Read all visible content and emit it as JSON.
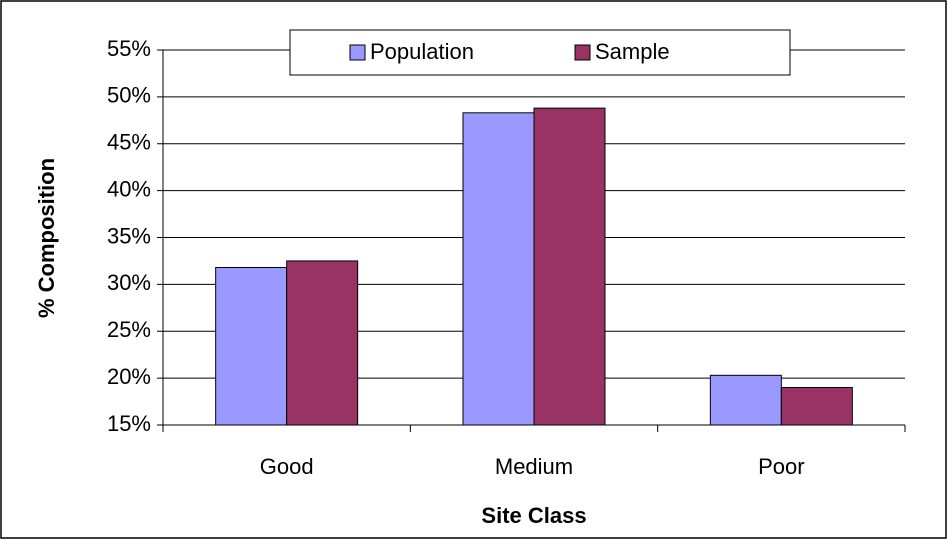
{
  "chart_data": {
    "type": "bar",
    "x_label": "Site Class",
    "y_label": "% Composition",
    "categories": [
      "Good",
      "Medium",
      "Poor"
    ],
    "series": [
      {
        "name": "Population",
        "color": "#9999ff",
        "values": [
          31.8,
          48.3,
          20.3
        ]
      },
      {
        "name": "Sample",
        "color": "#993366",
        "values": [
          32.5,
          48.8,
          19.0
        ]
      }
    ],
    "ylim": [
      15,
      55
    ],
    "yticks": [
      {
        "value": 15,
        "label": "15%"
      },
      {
        "value": 20,
        "label": "20%"
      },
      {
        "value": 25,
        "label": "25%"
      },
      {
        "value": 30,
        "label": "30%"
      },
      {
        "value": 35,
        "label": "35%"
      },
      {
        "value": 40,
        "label": "40%"
      },
      {
        "value": 45,
        "label": "45%"
      },
      {
        "value": 50,
        "label": "50%"
      },
      {
        "value": 55,
        "label": "55%"
      }
    ],
    "grid": true,
    "legend": "top"
  }
}
